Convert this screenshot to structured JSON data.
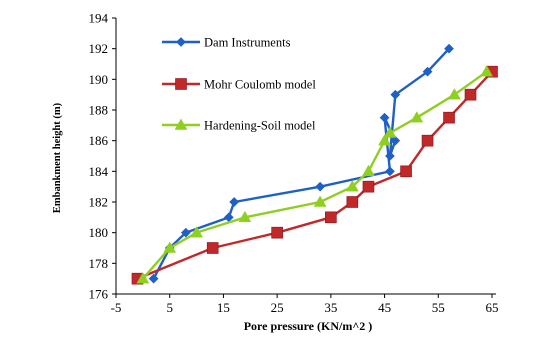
{
  "chart_data": {
    "type": "line",
    "title": "",
    "xlabel": "Pore pressure (KN/m^2 )",
    "ylabel": "Embankment height (m)",
    "xlim": [
      -5,
      65
    ],
    "ylim": [
      176,
      194
    ],
    "xticks": [
      -5,
      5,
      15,
      25,
      35,
      45,
      55,
      65
    ],
    "yticks": [
      176,
      178,
      180,
      182,
      184,
      186,
      188,
      190,
      192,
      194
    ],
    "grid": false,
    "legend_position": "inside-top-left",
    "series": [
      {
        "name": "Dam Instruments",
        "color": "#1f5fc8",
        "marker": "diamond",
        "x": [
          2,
          5,
          8,
          16,
          17,
          33,
          46,
          45,
          47,
          46,
          47,
          53,
          57
        ],
        "y": [
          177,
          179,
          180,
          181,
          182,
          183,
          184,
          187.5,
          186,
          185,
          189,
          190.5,
          192
        ]
      },
      {
        "name": "Mohr Coulomb model",
        "color": "#c0282a",
        "marker": "square",
        "x": [
          -1,
          13,
          25,
          35,
          39,
          42,
          49,
          53,
          57,
          61,
          65
        ],
        "y": [
          177,
          179,
          180,
          181,
          182,
          183,
          184,
          186,
          187.5,
          189,
          190.5
        ]
      },
      {
        "name": "Hardening-Soil model",
        "color": "#8fcf21",
        "marker": "triangle",
        "x": [
          0,
          5,
          10,
          19,
          33,
          39,
          42,
          45,
          46,
          51,
          58,
          64
        ],
        "y": [
          177,
          179,
          180,
          181,
          182,
          183,
          184,
          186,
          186.5,
          187.5,
          189,
          190.5
        ]
      }
    ]
  }
}
